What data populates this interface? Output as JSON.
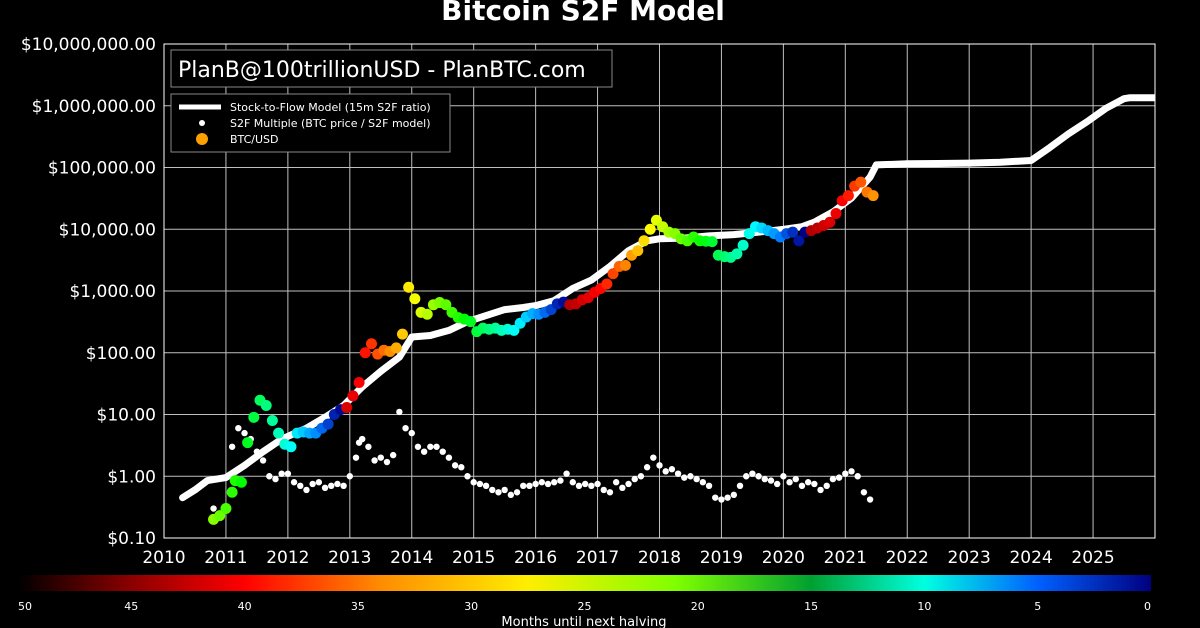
{
  "chart_data": {
    "type": "scatter",
    "title": "Bitcoin S2F Model",
    "credit": "PlanB@100trillionUSD - PlanBTC.com",
    "y_scale": "log",
    "ylim": [
      0.1,
      10000000
    ],
    "xlim": [
      2010,
      2026
    ],
    "y_ticks": [
      {
        "value": 0.1,
        "label": "$0.10"
      },
      {
        "value": 1,
        "label": "$1.00"
      },
      {
        "value": 10,
        "label": "$10.00"
      },
      {
        "value": 100,
        "label": "$100.00"
      },
      {
        "value": 1000,
        "label": "$1,000.00"
      },
      {
        "value": 10000,
        "label": "$10,000.00"
      },
      {
        "value": 100000,
        "label": "$100,000.00"
      },
      {
        "value": 1000000,
        "label": "$1,000,000.00"
      },
      {
        "value": 10000000,
        "label": "$10,000,000.00"
      }
    ],
    "x_ticks": [
      "2010",
      "2011",
      "2012",
      "2013",
      "2014",
      "2015",
      "2016",
      "2017",
      "2018",
      "2019",
      "2020",
      "2021",
      "2022",
      "2023",
      "2024",
      "2025"
    ],
    "grid": true,
    "legend": {
      "placement": "top-left",
      "entries": [
        "Stock-to-Flow Model (15m S2F ratio)",
        "S2F Multiple (BTC price / S2F model)",
        "BTC/USD"
      ]
    },
    "model_series": {
      "name": "Stock-to-Flow Model (15m S2F ratio)",
      "x": [
        2010.3,
        2010.5,
        2010.7,
        2011.0,
        2011.3,
        2011.6,
        2011.9,
        2012.3,
        2012.6,
        2012.9,
        2013.2,
        2013.5,
        2013.8,
        2014.0,
        2014.3,
        2014.6,
        2014.9,
        2015.2,
        2015.5,
        2015.8,
        2016.0,
        2016.3,
        2016.6,
        2016.9,
        2017.2,
        2017.5,
        2017.8,
        2018.0,
        2018.4,
        2018.8,
        2019.2,
        2019.6,
        2020.0,
        2020.3,
        2020.5,
        2020.8,
        2021.1,
        2021.4,
        2021.5,
        2022.0,
        2022.5,
        2023.0,
        2023.5,
        2024.0,
        2024.3,
        2024.6,
        2024.9,
        2025.2,
        2025.5,
        2025.6,
        2025.8,
        2026.0
      ],
      "y": [
        0.45,
        0.6,
        0.85,
        0.95,
        1.5,
        2.5,
        4,
        6,
        9,
        14,
        28,
        50,
        85,
        180,
        190,
        230,
        320,
        400,
        500,
        540,
        580,
        700,
        1100,
        1500,
        2500,
        4500,
        6500,
        7000,
        7200,
        7800,
        8200,
        9000,
        10000,
        11000,
        13000,
        19000,
        32000,
        70000,
        110000,
        115000,
        116000,
        118000,
        122000,
        130000,
        210000,
        350000,
        550000,
        900000,
        1300000,
        1350000,
        1350000,
        1350000
      ]
    },
    "price_series": {
      "name": "BTC/USD",
      "x": [
        2010.8,
        2010.9,
        2011.0,
        2011.1,
        2011.15,
        2011.25,
        2011.35,
        2011.45,
        2011.55,
        2011.65,
        2011.75,
        2011.85,
        2011.95,
        2012.05,
        2012.15,
        2012.25,
        2012.35,
        2012.45,
        2012.55,
        2012.65,
        2012.75,
        2012.85,
        2012.95,
        2013.05,
        2013.15,
        2013.25,
        2013.35,
        2013.45,
        2013.55,
        2013.65,
        2013.75,
        2013.85,
        2013.95,
        2014.05,
        2014.15,
        2014.25,
        2014.35,
        2014.45,
        2014.55,
        2014.65,
        2014.75,
        2014.85,
        2014.95,
        2015.05,
        2015.15,
        2015.25,
        2015.35,
        2015.45,
        2015.55,
        2015.65,
        2015.75,
        2015.85,
        2015.95,
        2016.05,
        2016.15,
        2016.25,
        2016.35,
        2016.45,
        2016.55,
        2016.65,
        2016.75,
        2016.85,
        2016.95,
        2017.05,
        2017.15,
        2017.25,
        2017.35,
        2017.45,
        2017.55,
        2017.65,
        2017.75,
        2017.85,
        2017.95,
        2018.05,
        2018.15,
        2018.25,
        2018.35,
        2018.45,
        2018.55,
        2018.65,
        2018.75,
        2018.85,
        2018.95,
        2019.05,
        2019.15,
        2019.25,
        2019.35,
        2019.45,
        2019.55,
        2019.65,
        2019.75,
        2019.85,
        2019.95,
        2020.05,
        2020.15,
        2020.25,
        2020.35,
        2020.45,
        2020.55,
        2020.65,
        2020.75,
        2020.85,
        2020.95,
        2021.05,
        2021.15,
        2021.25,
        2021.35,
        2021.45
      ],
      "y": [
        0.2,
        0.23,
        0.3,
        0.55,
        0.85,
        0.8,
        3.5,
        9,
        17,
        14,
        8,
        5,
        3.3,
        3,
        5,
        5.2,
        5,
        5,
        6,
        7,
        10,
        12,
        13,
        20,
        33,
        100,
        140,
        95,
        110,
        105,
        120,
        200,
        1150,
        750,
        450,
        420,
        600,
        650,
        600,
        450,
        370,
        350,
        320,
        220,
        250,
        240,
        250,
        230,
        240,
        230,
        300,
        380,
        430,
        420,
        450,
        500,
        620,
        660,
        600,
        620,
        720,
        780,
        950,
        1100,
        1300,
        1900,
        2500,
        2600,
        3800,
        4500,
        6500,
        10000,
        14000,
        11000,
        9000,
        8500,
        7000,
        6500,
        7500,
        6500,
        6400,
        6300,
        3800,
        3600,
        3500,
        4000,
        5500,
        8500,
        11000,
        10500,
        9500,
        8500,
        7500,
        8500,
        9000,
        6500,
        9000,
        9500,
        10500,
        11500,
        13000,
        18000,
        29000,
        35000,
        50000,
        58000,
        40000,
        35000
      ]
    },
    "multiple_series": {
      "name": "S2F Multiple (BTC price / S2F model)",
      "x": [
        2010.8,
        2011.1,
        2011.2,
        2011.3,
        2011.4,
        2011.5,
        2011.6,
        2011.7,
        2011.8,
        2011.9,
        2012.0,
        2012.1,
        2012.2,
        2012.3,
        2012.4,
        2012.5,
        2012.6,
        2012.7,
        2012.8,
        2012.9,
        2013.0,
        2013.1,
        2013.15,
        2013.2,
        2013.3,
        2013.4,
        2013.5,
        2013.6,
        2013.7,
        2013.8,
        2013.9,
        2014.0,
        2014.1,
        2014.2,
        2014.3,
        2014.4,
        2014.5,
        2014.6,
        2014.7,
        2014.8,
        2014.9,
        2015.0,
        2015.1,
        2015.2,
        2015.3,
        2015.4,
        2015.5,
        2015.6,
        2015.7,
        2015.8,
        2015.9,
        2016.0,
        2016.1,
        2016.2,
        2016.3,
        2016.4,
        2016.5,
        2016.6,
        2016.7,
        2016.8,
        2016.9,
        2017.0,
        2017.1,
        2017.2,
        2017.3,
        2017.4,
        2017.5,
        2017.6,
        2017.7,
        2017.8,
        2017.9,
        2018.0,
        2018.1,
        2018.2,
        2018.3,
        2018.4,
        2018.5,
        2018.6,
        2018.7,
        2018.8,
        2018.9,
        2019.0,
        2019.1,
        2019.2,
        2019.3,
        2019.4,
        2019.5,
        2019.6,
        2019.7,
        2019.8,
        2019.9,
        2020.0,
        2020.1,
        2020.2,
        2020.3,
        2020.4,
        2020.5,
        2020.6,
        2020.7,
        2020.8,
        2020.9,
        2021.0,
        2021.1,
        2021.2,
        2021.3,
        2021.4
      ],
      "y": [
        0.3,
        3,
        6,
        5,
        4,
        2.5,
        1.8,
        1,
        0.9,
        1.1,
        1.1,
        0.8,
        0.7,
        0.6,
        0.75,
        0.8,
        0.65,
        0.7,
        0.75,
        0.7,
        1,
        2,
        3.5,
        4,
        3,
        1.8,
        2,
        1.7,
        2.2,
        11,
        6,
        5,
        3,
        2.5,
        3,
        3,
        2.5,
        2,
        1.5,
        1.4,
        1,
        0.8,
        0.75,
        0.7,
        0.6,
        0.55,
        0.6,
        0.5,
        0.55,
        0.7,
        0.7,
        0.75,
        0.8,
        0.75,
        0.8,
        0.85,
        1.1,
        0.8,
        0.7,
        0.75,
        0.7,
        0.75,
        0.6,
        0.55,
        0.8,
        0.65,
        0.75,
        0.9,
        1,
        1.4,
        2,
        1.5,
        1.2,
        1.3,
        1.1,
        0.95,
        1,
        0.9,
        0.8,
        0.7,
        0.45,
        0.42,
        0.45,
        0.5,
        0.7,
        1,
        1.1,
        1,
        0.9,
        0.85,
        0.75,
        1,
        0.8,
        0.9,
        0.7,
        0.8,
        0.75,
        0.6,
        0.7,
        0.9,
        0.95,
        1.1,
        1.2,
        1,
        0.55,
        0.42
      ]
    },
    "colorbar": {
      "label": "Months until next halving",
      "ticks": [
        "50",
        "45",
        "40",
        "35",
        "30",
        "25",
        "20",
        "15",
        "10",
        "5",
        "0"
      ],
      "min": 0,
      "max": 50
    }
  }
}
